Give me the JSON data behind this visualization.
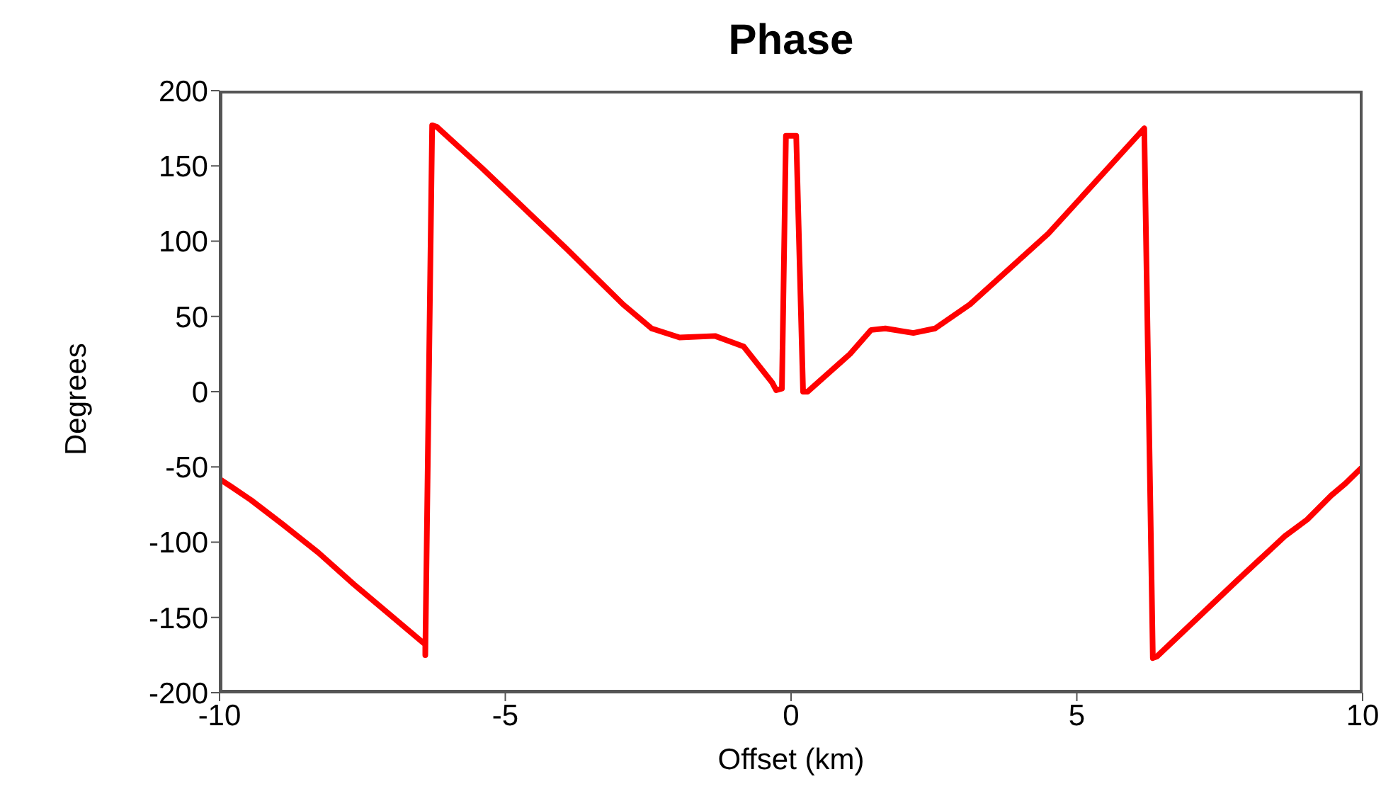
{
  "chart_data": {
    "type": "line",
    "title": "Phase",
    "xlabel": "Offset (km)",
    "ylabel": "Degrees",
    "xlim": [
      -10,
      10
    ],
    "xticks": [
      -10,
      -5,
      0,
      5,
      10
    ],
    "ylim": [
      -200,
      200
    ],
    "yticks": [
      -200,
      -150,
      -100,
      -50,
      0,
      50,
      100,
      150,
      200
    ],
    "grid": false,
    "legend": false,
    "marker": "none",
    "line_style": "solid",
    "series": [
      {
        "color": "#ff0000",
        "x": [
          -10,
          -9.8,
          -9.45,
          -8.9,
          -8.27,
          -7.65,
          -6.4,
          -6.4,
          -6.28,
          -6.2,
          -5.42,
          -3.93,
          -2.94,
          -2.44,
          -1.95,
          -1.33,
          -0.83,
          -0.33,
          -0.26,
          -0.16,
          -0.09,
          0.09,
          0.21,
          0.29,
          1.03,
          1.4,
          1.65,
          2.14,
          2.52,
          3.13,
          4.5,
          6.18,
          6.33,
          6.4,
          7.79,
          8.64,
          9.03,
          9.45,
          9.7,
          9.97
        ],
        "values": [
          -58,
          -63,
          -72,
          -88,
          -107,
          -128,
          -168,
          -175,
          177,
          176,
          149,
          95,
          58,
          42,
          36,
          37,
          30,
          6,
          1,
          2,
          170,
          170,
          0,
          0,
          25,
          41,
          42,
          39,
          42,
          58,
          105,
          175,
          -177,
          -176,
          -126,
          -96,
          -85,
          -69,
          -61,
          -51
        ]
      }
    ]
  }
}
